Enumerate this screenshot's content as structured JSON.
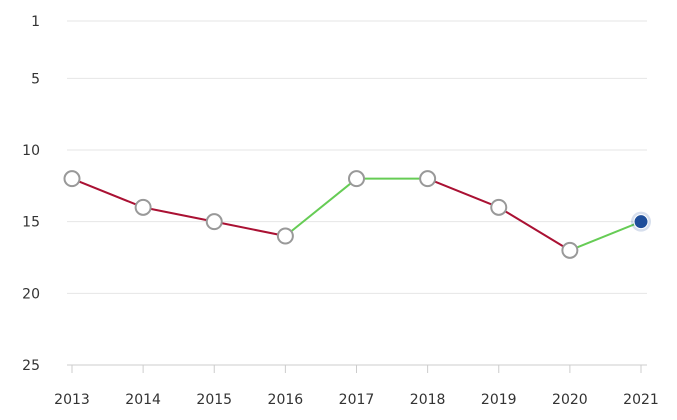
{
  "chart_data": {
    "type": "line",
    "title": "",
    "xlabel": "",
    "ylabel": "",
    "x": [
      "2013",
      "2014",
      "2015",
      "2016",
      "2017",
      "2018",
      "2019",
      "2020",
      "2021"
    ],
    "values": [
      12,
      14,
      15,
      16,
      12,
      12,
      14,
      17,
      15
    ],
    "y_reversed": true,
    "ylim": [
      1,
      25
    ],
    "y_ticks": [
      1,
      5,
      10,
      15,
      20,
      25
    ],
    "grid": true,
    "legend": "none",
    "highlighted_index": 8,
    "colors": {
      "improving_segment": "#66cc55",
      "declining_segment": "#aa1133",
      "marker_fill": "#ffffff",
      "marker_stroke": "#999999",
      "highlight_marker": "#1f4e9a"
    }
  }
}
